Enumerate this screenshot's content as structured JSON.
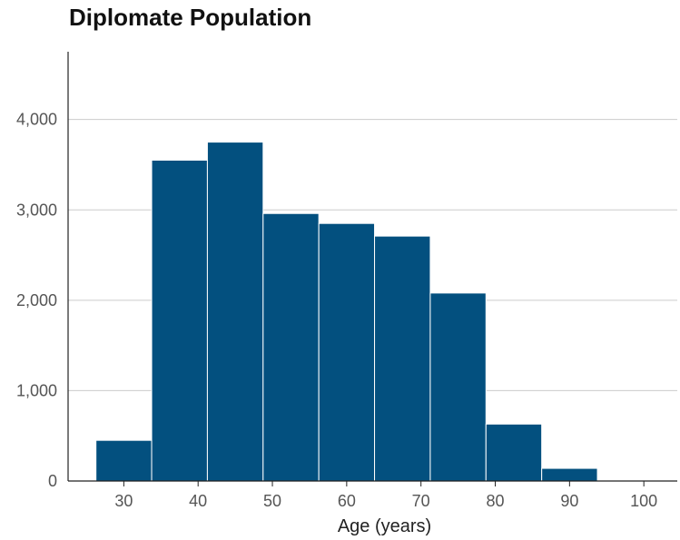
{
  "chart_data": {
    "type": "bar",
    "title": "Diplomate Population",
    "xlabel": "Age (years)",
    "ylabel": "",
    "bin_width": 7.5,
    "bins": [
      {
        "start": 26.25,
        "end": 33.75,
        "value": 450
      },
      {
        "start": 33.75,
        "end": 41.25,
        "value": 3550
      },
      {
        "start": 41.25,
        "end": 48.75,
        "value": 3750
      },
      {
        "start": 48.75,
        "end": 56.25,
        "value": 2960
      },
      {
        "start": 56.25,
        "end": 63.75,
        "value": 2850
      },
      {
        "start": 63.75,
        "end": 71.25,
        "value": 2710
      },
      {
        "start": 71.25,
        "end": 78.75,
        "value": 2080
      },
      {
        "start": 78.75,
        "end": 86.25,
        "value": 630
      },
      {
        "start": 86.25,
        "end": 93.75,
        "value": 140
      },
      {
        "start": 93.75,
        "end": 101.25,
        "value": 0
      }
    ],
    "xlim": [
      22.5,
      104.5
    ],
    "ylim": [
      0,
      4750
    ],
    "x_ticks": [
      30,
      40,
      50,
      60,
      70,
      80,
      90,
      100
    ],
    "x_tick_labels": [
      "30",
      "40",
      "50",
      "60",
      "70",
      "80",
      "90",
      "100"
    ],
    "y_ticks": [
      0,
      1000,
      2000,
      3000,
      4000
    ],
    "y_tick_labels": [
      "0",
      "1,000",
      "2,000",
      "3,000",
      "4,000"
    ],
    "grid": "horizontal",
    "legend": "none",
    "bar_color": "#03507f",
    "bar_edge_color": "#ffffff",
    "grid_color": "#cccccc",
    "axis_color": "#222222"
  }
}
